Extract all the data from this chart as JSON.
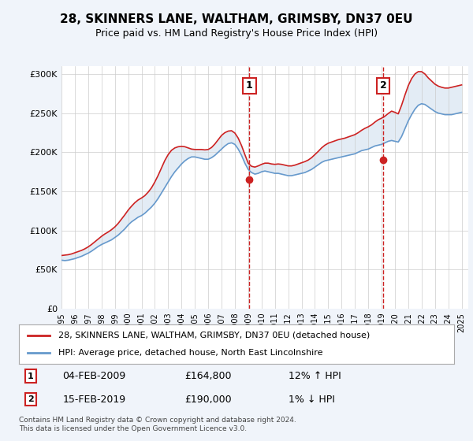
{
  "title": "28, SKINNERS LANE, WALTHAM, GRIMSBY, DN37 0EU",
  "subtitle": "Price paid vs. HM Land Registry's House Price Index (HPI)",
  "ylabel_ticks": [
    "£0",
    "£50K",
    "£100K",
    "£150K",
    "£200K",
    "£250K",
    "£300K"
  ],
  "ytick_vals": [
    0,
    50000,
    100000,
    150000,
    200000,
    250000,
    300000
  ],
  "ylim": [
    0,
    310000
  ],
  "xlim_start": 1995.0,
  "xlim_end": 2025.5,
  "hpi_color": "#6699cc",
  "price_color": "#cc2222",
  "marker1_x": 2009.09,
  "marker1_y": 164800,
  "marker1_label": "1",
  "marker1_date": "04-FEB-2009",
  "marker1_price": "£164,800",
  "marker1_hpi": "12% ↑ HPI",
  "marker2_x": 2019.12,
  "marker2_y": 190000,
  "marker2_label": "2",
  "marker2_date": "15-FEB-2019",
  "marker2_price": "£190,000",
  "marker2_hpi": "1% ↓ HPI",
  "legend_line1": "28, SKINNERS LANE, WALTHAM, GRIMSBY, DN37 0EU (detached house)",
  "legend_line2": "HPI: Average price, detached house, North East Lincolnshire",
  "footnote": "Contains HM Land Registry data © Crown copyright and database right 2024.\nThis data is licensed under the Open Government Licence v3.0.",
  "background_color": "#f0f4fa",
  "plot_bg_color": "#ffffff",
  "grid_color": "#cccccc",
  "hpi_data_x": [
    1995.0,
    1995.25,
    1995.5,
    1995.75,
    1996.0,
    1996.25,
    1996.5,
    1996.75,
    1997.0,
    1997.25,
    1997.5,
    1997.75,
    1998.0,
    1998.25,
    1998.5,
    1998.75,
    1999.0,
    1999.25,
    1999.5,
    1999.75,
    2000.0,
    2000.25,
    2000.5,
    2000.75,
    2001.0,
    2001.25,
    2001.5,
    2001.75,
    2002.0,
    2002.25,
    2002.5,
    2002.75,
    2003.0,
    2003.25,
    2003.5,
    2003.75,
    2004.0,
    2004.25,
    2004.5,
    2004.75,
    2005.0,
    2005.25,
    2005.5,
    2005.75,
    2006.0,
    2006.25,
    2006.5,
    2006.75,
    2007.0,
    2007.25,
    2007.5,
    2007.75,
    2008.0,
    2008.25,
    2008.5,
    2008.75,
    2009.0,
    2009.25,
    2009.5,
    2009.75,
    2010.0,
    2010.25,
    2010.5,
    2010.75,
    2011.0,
    2011.25,
    2011.5,
    2011.75,
    2012.0,
    2012.25,
    2012.5,
    2012.75,
    2013.0,
    2013.25,
    2013.5,
    2013.75,
    2014.0,
    2014.25,
    2014.5,
    2014.75,
    2015.0,
    2015.25,
    2015.5,
    2015.75,
    2016.0,
    2016.25,
    2016.5,
    2016.75,
    2017.0,
    2017.25,
    2017.5,
    2017.75,
    2018.0,
    2018.25,
    2018.5,
    2018.75,
    2019.0,
    2019.25,
    2019.5,
    2019.75,
    2020.0,
    2020.25,
    2020.5,
    2020.75,
    2021.0,
    2021.25,
    2021.5,
    2021.75,
    2022.0,
    2022.25,
    2022.5,
    2022.75,
    2023.0,
    2023.25,
    2023.5,
    2023.75,
    2024.0,
    2024.25,
    2024.5,
    2024.75,
    2025.0
  ],
  "hpi_data_y": [
    62000,
    61500,
    62000,
    63000,
    64000,
    65500,
    67000,
    69000,
    71000,
    73500,
    76500,
    79500,
    82000,
    84000,
    86000,
    88000,
    91000,
    94000,
    98000,
    102000,
    107000,
    111000,
    114000,
    117000,
    119000,
    122000,
    126000,
    130000,
    135000,
    141000,
    148000,
    155000,
    162000,
    169000,
    175000,
    180000,
    185000,
    189000,
    192000,
    194000,
    194000,
    193000,
    192000,
    191000,
    191000,
    193000,
    196000,
    200000,
    204000,
    208000,
    211000,
    212000,
    210000,
    204000,
    196000,
    186000,
    178000,
    174000,
    172000,
    173000,
    175000,
    176000,
    175000,
    174000,
    173000,
    173000,
    172000,
    171000,
    170000,
    170000,
    171000,
    172000,
    173000,
    174000,
    176000,
    178000,
    181000,
    184000,
    187000,
    189000,
    190000,
    191000,
    192000,
    193000,
    194000,
    195000,
    196000,
    197000,
    198000,
    200000,
    202000,
    203000,
    204000,
    206000,
    208000,
    209000,
    210000,
    212000,
    214000,
    215000,
    214000,
    213000,
    220000,
    230000,
    240000,
    248000,
    255000,
    260000,
    262000,
    261000,
    258000,
    255000,
    252000,
    250000,
    249000,
    248000,
    248000,
    248000,
    249000,
    250000,
    251000
  ],
  "price_data_x": [
    1995.0,
    1995.25,
    1995.5,
    1995.75,
    1996.0,
    1996.25,
    1996.5,
    1996.75,
    1997.0,
    1997.25,
    1997.5,
    1997.75,
    1998.0,
    1998.25,
    1998.5,
    1998.75,
    1999.0,
    1999.25,
    1999.5,
    1999.75,
    2000.0,
    2000.25,
    2000.5,
    2000.75,
    2001.0,
    2001.25,
    2001.5,
    2001.75,
    2002.0,
    2002.25,
    2002.5,
    2002.75,
    2003.0,
    2003.25,
    2003.5,
    2003.75,
    2004.0,
    2004.25,
    2004.5,
    2004.75,
    2005.0,
    2005.25,
    2005.5,
    2005.75,
    2006.0,
    2006.25,
    2006.5,
    2006.75,
    2007.0,
    2007.25,
    2007.5,
    2007.75,
    2008.0,
    2008.25,
    2008.5,
    2008.75,
    2009.0,
    2009.25,
    2009.5,
    2009.75,
    2010.0,
    2010.25,
    2010.5,
    2010.75,
    2011.0,
    2011.25,
    2011.5,
    2011.75,
    2012.0,
    2012.25,
    2012.5,
    2012.75,
    2013.0,
    2013.25,
    2013.5,
    2013.75,
    2014.0,
    2014.25,
    2014.5,
    2014.75,
    2015.0,
    2015.25,
    2015.5,
    2015.75,
    2016.0,
    2016.25,
    2016.5,
    2016.75,
    2017.0,
    2017.25,
    2017.5,
    2017.75,
    2018.0,
    2018.25,
    2018.5,
    2018.75,
    2019.0,
    2019.25,
    2019.5,
    2019.75,
    2020.0,
    2020.25,
    2020.5,
    2020.75,
    2021.0,
    2021.25,
    2021.5,
    2021.75,
    2022.0,
    2022.25,
    2022.5,
    2022.75,
    2023.0,
    2023.25,
    2023.5,
    2023.75,
    2024.0,
    2024.25,
    2024.5,
    2024.75,
    2025.0
  ],
  "price_data_y": [
    68000,
    68500,
    69000,
    70000,
    71500,
    73000,
    74500,
    76500,
    79000,
    82000,
    85500,
    89000,
    92500,
    95500,
    98000,
    101000,
    104500,
    109000,
    114500,
    120000,
    126000,
    131000,
    135500,
    139000,
    141500,
    144500,
    149000,
    154500,
    162000,
    170500,
    180000,
    189500,
    197000,
    202500,
    205500,
    207000,
    207500,
    207000,
    205500,
    204000,
    203500,
    203500,
    203500,
    203000,
    203500,
    206000,
    210500,
    216000,
    221500,
    225000,
    227000,
    227500,
    224500,
    218000,
    208500,
    197000,
    186000,
    182000,
    181000,
    182500,
    184500,
    186000,
    186000,
    185000,
    184500,
    185000,
    184500,
    183500,
    182500,
    182500,
    183500,
    185000,
    186500,
    188000,
    190000,
    193000,
    197000,
    201000,
    205500,
    209000,
    211500,
    213000,
    214500,
    216000,
    217000,
    218000,
    219500,
    221000,
    222500,
    225000,
    228000,
    230500,
    232500,
    235000,
    238500,
    241500,
    243500,
    246000,
    249500,
    252500,
    251000,
    249000,
    260000,
    273000,
    285000,
    294000,
    300000,
    303000,
    303000,
    300000,
    295000,
    291000,
    287000,
    284500,
    283000,
    282000,
    282000,
    283000,
    284000,
    285000,
    286000
  ]
}
